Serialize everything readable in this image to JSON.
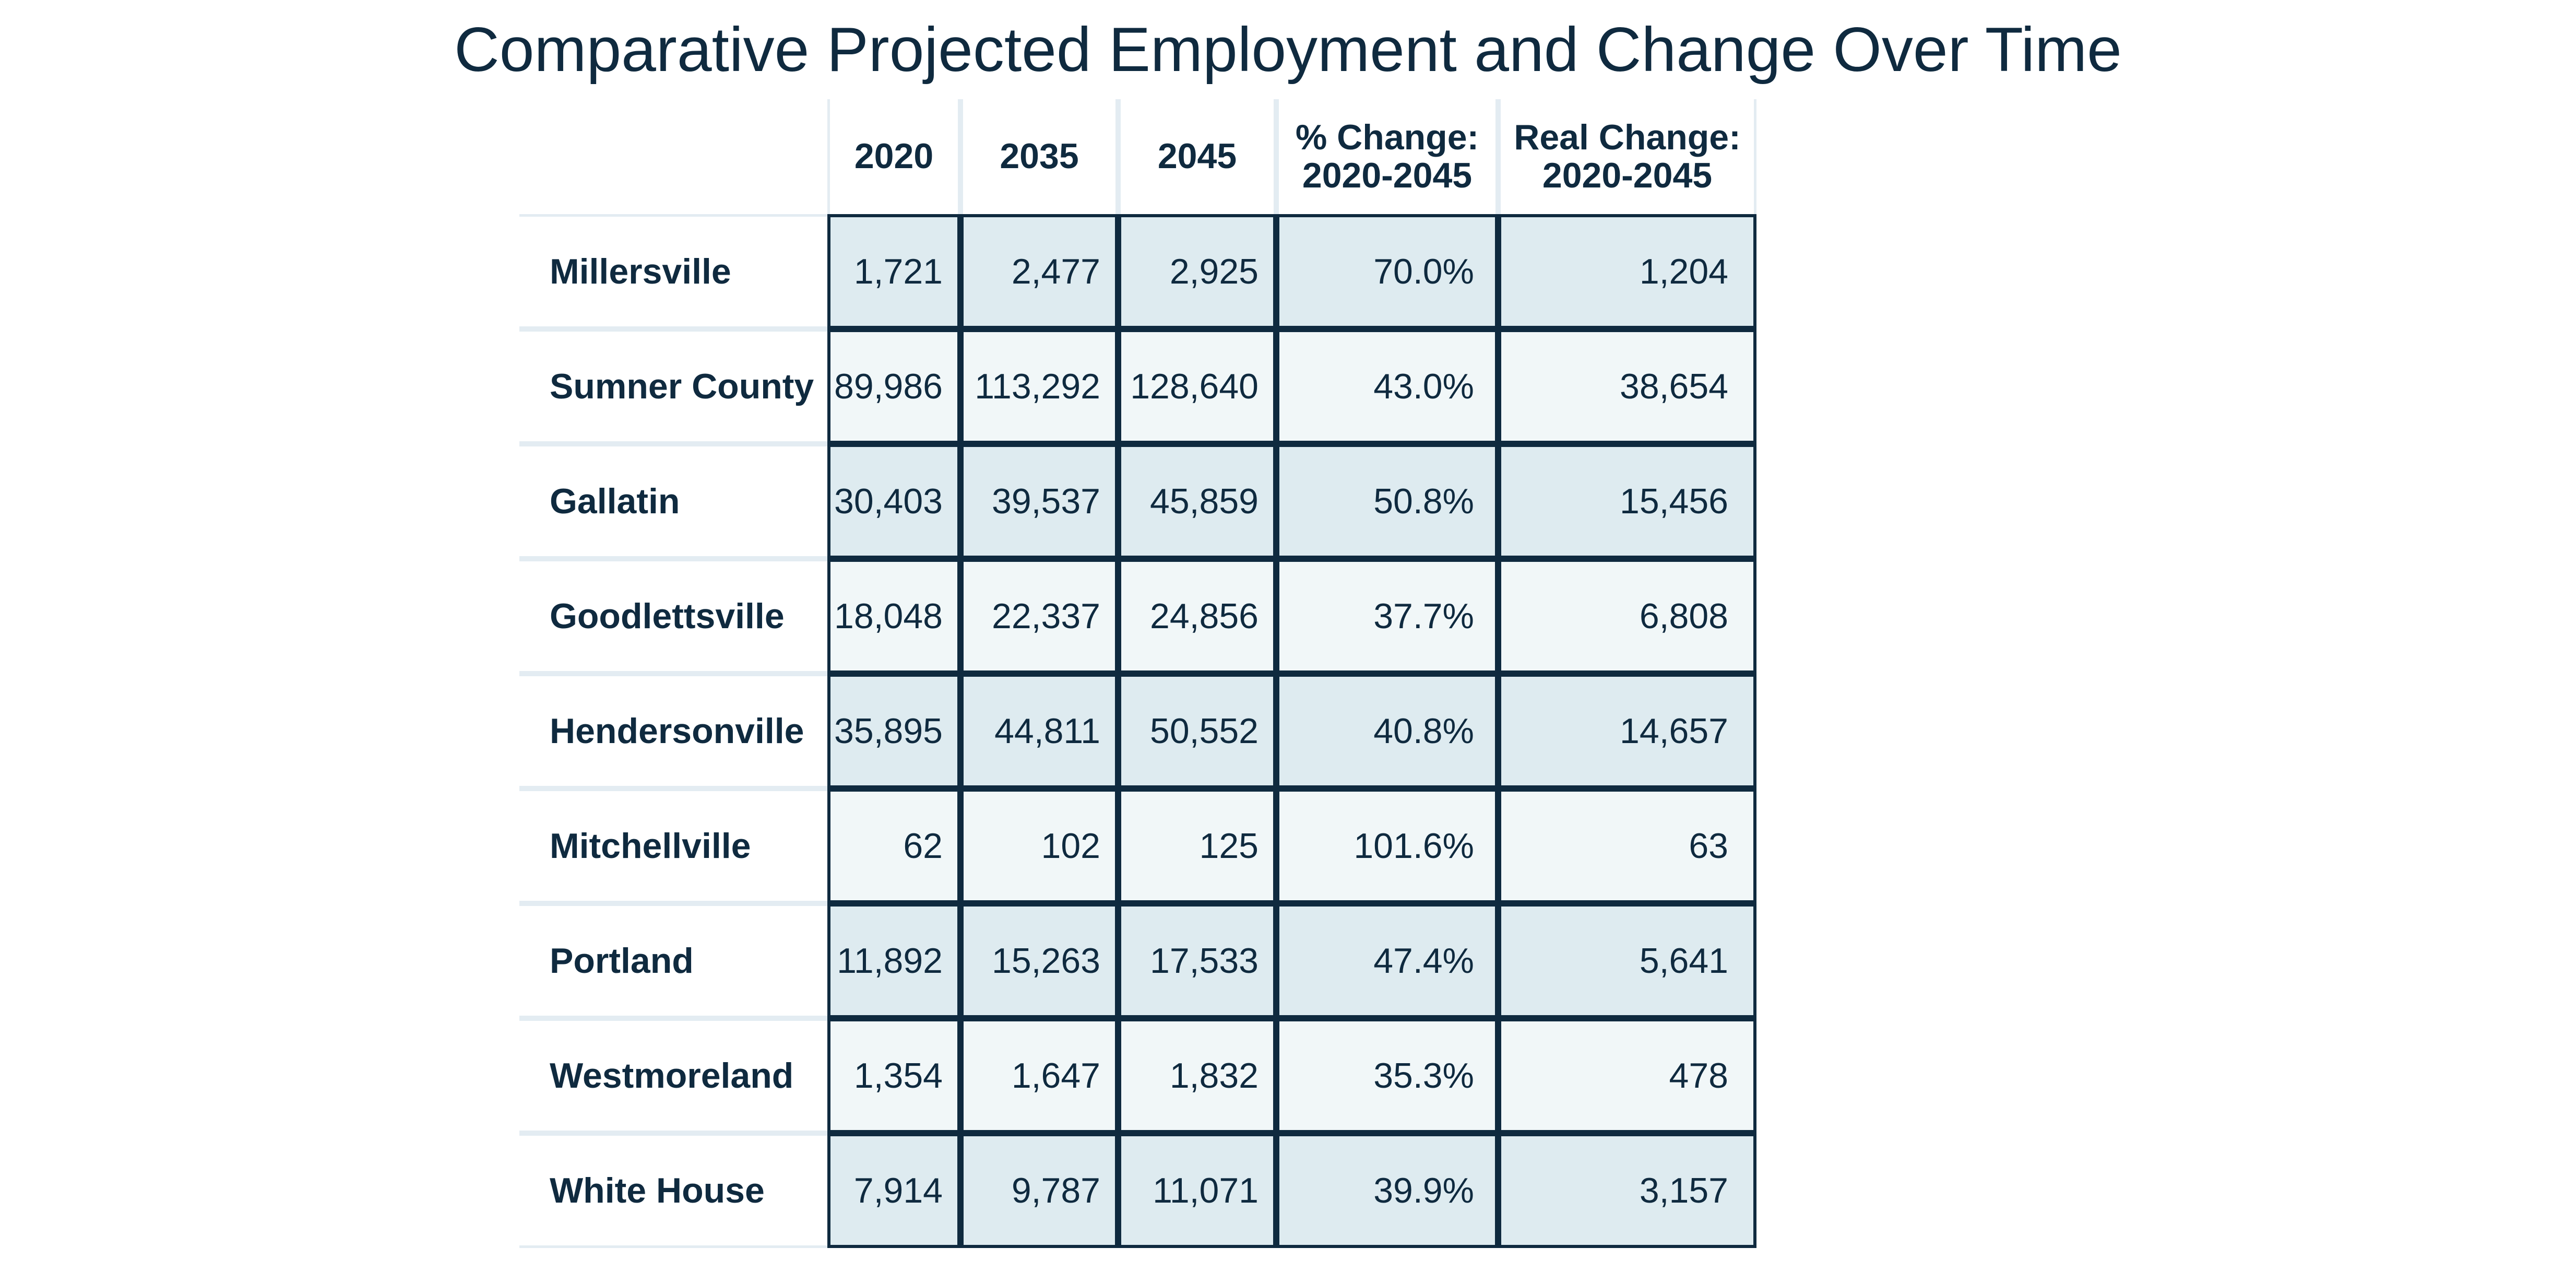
{
  "chart_data": {
    "type": "table",
    "title": "Comparative Projected Employment and Change Over Time",
    "columns": [
      "",
      "2020",
      "2035",
      "2045",
      "% Change:\n2020-2045",
      "Real Change:\n2020-2045"
    ],
    "rows": [
      {
        "name": "Millersville",
        "values": [
          "1,721",
          "2,477",
          "2,925",
          "70.0%",
          "1,204"
        ]
      },
      {
        "name": "Sumner County",
        "values": [
          "89,986",
          "113,292",
          "128,640",
          "43.0%",
          "38,654"
        ]
      },
      {
        "name": "Gallatin",
        "values": [
          "30,403",
          "39,537",
          "45,859",
          "50.8%",
          "15,456"
        ]
      },
      {
        "name": "Goodlettsville",
        "values": [
          "18,048",
          "22,337",
          "24,856",
          "37.7%",
          "6,808"
        ]
      },
      {
        "name": "Hendersonville",
        "values": [
          "35,895",
          "44,811",
          "50,552",
          "40.8%",
          "14,657"
        ]
      },
      {
        "name": "Mitchellville",
        "values": [
          "62",
          "102",
          "125",
          "101.6%",
          "63"
        ]
      },
      {
        "name": "Portland",
        "values": [
          "11,892",
          "15,263",
          "17,533",
          "47.4%",
          "5,641"
        ]
      },
      {
        "name": "Westmoreland",
        "values": [
          "1,354",
          "1,647",
          "1,832",
          "35.3%",
          "478"
        ]
      },
      {
        "name": "White House",
        "values": [
          "7,914",
          "9,787",
          "11,071",
          "39.9%",
          "3,157"
        ]
      }
    ]
  },
  "colors": {
    "text": "#0f2a3f",
    "border": "#0f2a3f",
    "row_shade_dark": "#deebf0",
    "row_shade_light": "#f1f7f8",
    "header_rule": "#e3ecf2"
  }
}
